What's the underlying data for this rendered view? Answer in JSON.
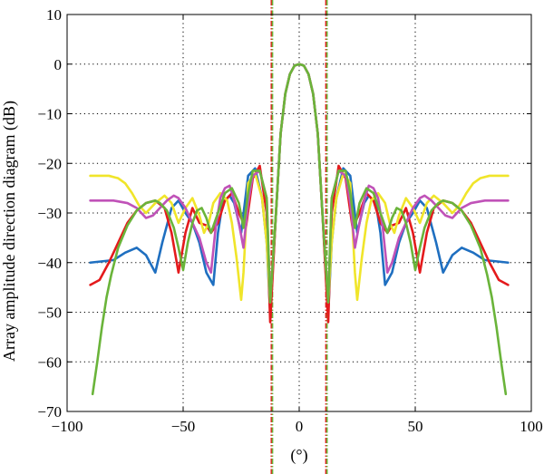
{
  "chart_data": {
    "type": "line",
    "title": "",
    "xlabel": "(°)",
    "ylabel": "Array amplitude direction diagram (dB)",
    "xlim": [
      -100,
      100
    ],
    "ylim": [
      -70,
      10
    ],
    "xticks": [
      -100,
      -50,
      0,
      50,
      100
    ],
    "yticks": [
      10,
      0,
      -10,
      -20,
      -30,
      -40,
      -50,
      -60,
      -70
    ],
    "xtick_labels": [
      "−100",
      "−50",
      "0",
      "50",
      "100"
    ],
    "ytick_labels": [
      "10",
      "0",
      "−10",
      "−20",
      "−30",
      "−40",
      "−50",
      "−60",
      "−70"
    ],
    "grid": true,
    "legend": "none",
    "vertical_markers": [
      {
        "x": -12,
        "color": "#e41a1c"
      },
      {
        "x": -11.5,
        "color": "#6ab43a"
      },
      {
        "x": 11.5,
        "color": "#e41a1c"
      },
      {
        "x": 12,
        "color": "#6ab43a"
      }
    ],
    "series": [
      {
        "color": "#1f6fc0",
        "x": [
          -90,
          -80,
          -75,
          -70,
          -66,
          -62,
          -59,
          -55,
          -52,
          -49,
          -46,
          -43,
          -40,
          -37,
          -35,
          -33,
          -30,
          -28,
          -25,
          -22,
          -19,
          -16,
          -14,
          -12.5,
          -10,
          -8,
          -6,
          -4,
          -2,
          0,
          2,
          4,
          6,
          8,
          10,
          12.5,
          14,
          16,
          19,
          22,
          25,
          28,
          30,
          33,
          35,
          37,
          40,
          43,
          46,
          49,
          52,
          55,
          59,
          62,
          66,
          70,
          75,
          80,
          90
        ],
        "values": [
          -40,
          -39.5,
          -38,
          -37,
          -38.5,
          -42,
          -36,
          -29,
          -27.5,
          -30,
          -32,
          -36,
          -42,
          -44.5,
          -34,
          -28,
          -26.5,
          -28,
          -34,
          -22.5,
          -21,
          -27,
          -36,
          -50,
          -30,
          -14,
          -6,
          -2,
          -0.3,
          0,
          -0.3,
          -2,
          -6,
          -14,
          -30,
          -50,
          -36,
          -27,
          -21,
          -22.5,
          -34,
          -28,
          -26.5,
          -28,
          -34,
          -44.5,
          -42,
          -36,
          -32,
          -30,
          -27.5,
          -29,
          -36,
          -42,
          -38.5,
          -37,
          -38,
          -39.5,
          -40
        ]
      },
      {
        "color": "#e41a1c",
        "x": [
          -90,
          -86,
          -82,
          -78,
          -74,
          -70,
          -66,
          -62,
          -58,
          -55,
          -52,
          -49,
          -46,
          -43,
          -40,
          -38,
          -35,
          -32,
          -29,
          -26,
          -23,
          -20,
          -17,
          -14,
          -12.5,
          -10,
          -8,
          -6,
          -4,
          -2,
          0,
          2,
          4,
          6,
          8,
          10,
          12.5,
          14,
          17,
          20,
          23,
          26,
          29,
          32,
          35,
          38,
          40,
          43,
          46,
          49,
          52,
          55,
          58,
          62,
          66,
          70,
          74,
          78,
          82,
          86,
          90
        ],
        "values": [
          -44.5,
          -43.5,
          -40,
          -36,
          -32,
          -29.5,
          -28,
          -27.5,
          -29,
          -34,
          -42,
          -34,
          -29,
          -32,
          -32.5,
          -34,
          -32,
          -27.5,
          -26,
          -30,
          -33,
          -23,
          -20.5,
          -30,
          -52,
          -30,
          -14,
          -6,
          -2,
          -0.3,
          0,
          -0.3,
          -2,
          -6,
          -14,
          -30,
          -52,
          -30,
          -20.5,
          -23,
          -33,
          -30,
          -26,
          -27.5,
          -32,
          -34,
          -32.5,
          -32,
          -29,
          -34,
          -42,
          -34,
          -29,
          -27.5,
          -28,
          -29.5,
          -32,
          -36,
          -40,
          -43.5,
          -44.5
        ]
      },
      {
        "color": "#f0e52a",
        "x": [
          -90,
          -82,
          -78,
          -75,
          -72,
          -69,
          -66,
          -62,
          -58,
          -55,
          -52,
          -49,
          -46,
          -43,
          -41,
          -39,
          -37,
          -34,
          -31,
          -29,
          -27,
          -25,
          -24,
          -22,
          -19,
          -16,
          -14,
          -12.5,
          -10,
          -8,
          -6,
          -4,
          -2,
          0,
          2,
          4,
          6,
          8,
          10,
          12.5,
          14,
          16,
          19,
          22,
          24,
          25,
          27,
          29,
          31,
          34,
          37,
          39,
          41,
          43,
          46,
          49,
          52,
          55,
          58,
          62,
          66,
          69,
          72,
          75,
          78,
          82,
          90
        ],
        "values": [
          -22.5,
          -22.5,
          -23,
          -24,
          -26,
          -28.5,
          -30,
          -28,
          -26.5,
          -28,
          -32,
          -29,
          -27,
          -30.5,
          -34,
          -32,
          -28,
          -26,
          -27.5,
          -32,
          -39,
          -47.5,
          -42,
          -24,
          -22,
          -27,
          -36,
          -48,
          -30,
          -14,
          -6,
          -2,
          -0.3,
          0,
          -0.3,
          -2,
          -6,
          -14,
          -30,
          -48,
          -36,
          -27,
          -22,
          -24,
          -42,
          -47.5,
          -39,
          -32,
          -27.5,
          -26,
          -28,
          -32,
          -34,
          -30.5,
          -27,
          -29,
          -32,
          -28,
          -26.5,
          -28,
          -30,
          -28.5,
          -26,
          -24,
          -23,
          -22.5,
          -22.5
        ]
      },
      {
        "color": "#c052b8",
        "x": [
          -90,
          -80,
          -74,
          -70,
          -66,
          -63,
          -60,
          -57,
          -54,
          -52,
          -49,
          -46,
          -43,
          -40,
          -38,
          -36,
          -34,
          -32,
          -30,
          -28,
          -26,
          -24,
          -22,
          -20,
          -17,
          -14,
          -12.5,
          -10,
          -8,
          -6,
          -4,
          -2,
          0,
          2,
          4,
          6,
          8,
          10,
          12.5,
          14,
          17,
          20,
          22,
          24,
          26,
          28,
          30,
          32,
          34,
          36,
          38,
          40,
          43,
          46,
          49,
          52,
          54,
          57,
          60,
          63,
          66,
          70,
          74,
          80,
          90
        ],
        "values": [
          -27.5,
          -27.5,
          -28,
          -29,
          -31,
          -30.5,
          -29,
          -27.5,
          -26.5,
          -27,
          -29,
          -32,
          -35,
          -40,
          -42,
          -33,
          -27,
          -25,
          -24.5,
          -27.5,
          -32,
          -37,
          -28,
          -22.5,
          -21.5,
          -27,
          -48,
          -30,
          -14,
          -6,
          -2,
          -0.3,
          0,
          -0.3,
          -2,
          -6,
          -14,
          -30,
          -48,
          -27,
          -21.5,
          -22.5,
          -28,
          -37,
          -32,
          -27.5,
          -24.5,
          -25,
          -27,
          -33,
          -42,
          -40,
          -35,
          -32,
          -29,
          -27,
          -26.5,
          -27.5,
          -29,
          -30.5,
          -31,
          -29,
          -28,
          -27.5,
          -27.5
        ]
      },
      {
        "color": "#6ab43a",
        "x": [
          -89,
          -87,
          -85,
          -83,
          -81,
          -78,
          -74,
          -70,
          -66,
          -62,
          -60,
          -57,
          -54,
          -52,
          -50,
          -48,
          -46,
          -44,
          -42,
          -40,
          -38,
          -35,
          -32,
          -29,
          -26,
          -24,
          -22,
          -20,
          -17,
          -14,
          -12.5,
          -10,
          -8,
          -6,
          -4,
          -2,
          0,
          2,
          4,
          6,
          8,
          10,
          12.5,
          14,
          17,
          20,
          22,
          24,
          26,
          29,
          32,
          35,
          38,
          40,
          42,
          44,
          46,
          48,
          50,
          52,
          54,
          57,
          60,
          62,
          66,
          70,
          74,
          78,
          81,
          83,
          85,
          87,
          89
        ],
        "values": [
          -66.5,
          -60,
          -53,
          -47,
          -42.5,
          -37,
          -32.5,
          -29.5,
          -28,
          -27.5,
          -28,
          -29.5,
          -33,
          -37,
          -41.5,
          -36,
          -32,
          -29.5,
          -29,
          -31,
          -34,
          -30,
          -26,
          -25,
          -28,
          -33,
          -26,
          -21.5,
          -21.5,
          -27,
          -48,
          -30,
          -14,
          -6,
          -2,
          -0.3,
          0,
          -0.3,
          -2,
          -6,
          -14,
          -30,
          -48,
          -27,
          -21.5,
          -21.5,
          -26,
          -33,
          -28,
          -25,
          -26,
          -30,
          -34,
          -31,
          -29,
          -29.5,
          -32,
          -36,
          -41.5,
          -37,
          -33,
          -29.5,
          -28,
          -27.5,
          -28,
          -29.5,
          -32.5,
          -37,
          -42.5,
          -47,
          -53,
          -60,
          -66.5
        ]
      }
    ]
  }
}
